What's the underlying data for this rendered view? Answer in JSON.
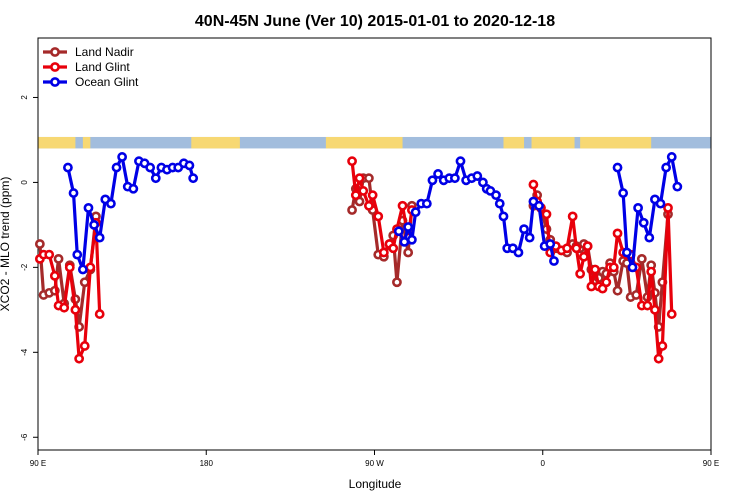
{
  "chart_data": {
    "type": "line",
    "title": "40N-45N June (Ver 10)   2015-01-01 to 2020-12-18",
    "xlabel": "Longitude",
    "ylabel": "XCO2 - MLO trend (ppm)",
    "xlim": [
      90,
      450
    ],
    "ylim": [
      -6.3,
      3.4
    ],
    "x_ticks": [
      {
        "value": 90,
        "label": "90 E"
      },
      {
        "value": 180,
        "label": "180"
      },
      {
        "value": 270,
        "label": "90 W"
      },
      {
        "value": 360,
        "label": "0"
      },
      {
        "value": 450,
        "label": "90 E"
      },
      {
        "value": 540,
        "label": "180"
      }
    ],
    "y_ticks": [
      {
        "value": -6,
        "label": "-6"
      },
      {
        "value": -4,
        "label": "-4"
      },
      {
        "value": -2,
        "label": "-2"
      },
      {
        "value": 0,
        "label": "0"
      },
      {
        "value": 2,
        "label": "2"
      }
    ],
    "legend_position": "top-left",
    "land_ocean_strip": {
      "y_bottom": 0.8,
      "y_top": 1.07,
      "land_color": "#f7d873",
      "ocean_color": "#a2bddd"
    },
    "series": [
      {
        "name": "Land Nadir",
        "color": "#a52a2a",
        "points": [
          [
            91,
            -1.45
          ],
          [
            93,
            -2.65
          ],
          [
            96,
            -2.6
          ],
          [
            99,
            -2.55
          ],
          [
            101,
            -1.8
          ],
          [
            104,
            -2.85
          ],
          [
            107,
            -1.95
          ],
          [
            110,
            -2.75
          ],
          [
            112,
            -3.4
          ],
          [
            115,
            -2.35
          ],
          [
            118,
            -2.05
          ],
          [
            121,
            -0.8
          ],
          [
            258,
            -0.65
          ],
          [
            260,
            -0.15
          ],
          [
            262,
            -0.45
          ],
          [
            264,
            0.1
          ],
          [
            267,
            0.1
          ],
          [
            269,
            -0.65
          ],
          [
            272,
            -1.7
          ],
          [
            275,
            -1.75
          ],
          [
            278,
            -1.45
          ],
          [
            280,
            -1.25
          ],
          [
            282,
            -2.35
          ],
          [
            285,
            -0.9
          ],
          [
            288,
            -1.65
          ],
          [
            290,
            -0.55
          ],
          [
            355,
            -0.55
          ],
          [
            357,
            -0.3
          ],
          [
            359,
            -0.6
          ],
          [
            362,
            -1.1
          ],
          [
            364,
            -1.35
          ],
          [
            367,
            -1.55
          ],
          [
            370,
            -1.6
          ],
          [
            373,
            -1.65
          ],
          [
            376,
            -1.45
          ],
          [
            378,
            -1.5
          ],
          [
            380,
            -1.55
          ],
          [
            382,
            -1.45
          ],
          [
            384,
            -1.5
          ],
          [
            386,
            -2.05
          ],
          [
            388,
            -2.3
          ],
          [
            390,
            -2.25
          ],
          [
            392,
            -2.1
          ],
          [
            394,
            -2.15
          ],
          [
            396,
            -1.9
          ],
          [
            398,
            -2.1
          ],
          [
            400,
            -2.55
          ],
          [
            403,
            -1.85
          ],
          [
            405,
            -1.9
          ],
          [
            407,
            -2.7
          ],
          [
            410,
            -2.65
          ],
          [
            413,
            -1.8
          ],
          [
            416,
            -2.7
          ],
          [
            418,
            -1.95
          ],
          [
            420,
            -2.6
          ],
          [
            422,
            -3.4
          ],
          [
            424,
            -2.35
          ],
          [
            427,
            -0.75
          ]
        ]
      },
      {
        "name": "Land Glint",
        "color": "#e8000b",
        "points": [
          [
            91,
            -1.8
          ],
          [
            93,
            -1.7
          ],
          [
            96,
            -1.7
          ],
          [
            99,
            -2.2
          ],
          [
            101,
            -2.9
          ],
          [
            104,
            -2.95
          ],
          [
            107,
            -2.0
          ],
          [
            110,
            -3.0
          ],
          [
            112,
            -4.15
          ],
          [
            115,
            -3.85
          ],
          [
            118,
            -2.0
          ],
          [
            121,
            -0.95
          ],
          [
            123,
            -3.1
          ],
          [
            258,
            0.5
          ],
          [
            260,
            -0.3
          ],
          [
            262,
            0.1
          ],
          [
            264,
            -0.2
          ],
          [
            267,
            -0.55
          ],
          [
            269,
            -0.3
          ],
          [
            272,
            -0.8
          ],
          [
            275,
            -1.65
          ],
          [
            278,
            -1.45
          ],
          [
            280,
            -1.55
          ],
          [
            282,
            -1.1
          ],
          [
            285,
            -0.55
          ],
          [
            288,
            -1.3
          ],
          [
            290,
            -0.65
          ],
          [
            355,
            -0.05
          ],
          [
            357,
            -0.45
          ],
          [
            359,
            -0.6
          ],
          [
            362,
            -0.75
          ],
          [
            364,
            -1.65
          ],
          [
            367,
            -1.5
          ],
          [
            370,
            -1.6
          ],
          [
            373,
            -1.55
          ],
          [
            376,
            -0.8
          ],
          [
            378,
            -1.55
          ],
          [
            380,
            -2.15
          ],
          [
            382,
            -1.75
          ],
          [
            384,
            -1.5
          ],
          [
            386,
            -2.45
          ],
          [
            388,
            -2.05
          ],
          [
            390,
            -2.45
          ],
          [
            392,
            -2.5
          ],
          [
            394,
            -2.35
          ],
          [
            396,
            -2.0
          ],
          [
            398,
            -2.0
          ],
          [
            400,
            -1.2
          ],
          [
            403,
            -1.65
          ],
          [
            405,
            -1.7
          ],
          [
            407,
            -1.7
          ],
          [
            410,
            -2.0
          ],
          [
            413,
            -2.9
          ],
          [
            416,
            -2.9
          ],
          [
            418,
            -2.1
          ],
          [
            420,
            -3.0
          ],
          [
            422,
            -4.15
          ],
          [
            424,
            -3.85
          ],
          [
            427,
            -0.6
          ],
          [
            429,
            -3.1
          ]
        ]
      },
      {
        "name": "Ocean Glint",
        "color": "#0000e6",
        "points": [
          [
            106,
            0.35
          ],
          [
            109,
            -0.25
          ],
          [
            111,
            -1.7
          ],
          [
            114,
            -2.05
          ],
          [
            117,
            -0.6
          ],
          [
            120,
            -1.0
          ],
          [
            123,
            -1.3
          ],
          [
            126,
            -0.4
          ],
          [
            129,
            -0.5
          ],
          [
            132,
            0.35
          ],
          [
            135,
            0.6
          ],
          [
            138,
            -0.1
          ],
          [
            141,
            -0.15
          ],
          [
            144,
            0.5
          ],
          [
            147,
            0.45
          ],
          [
            150,
            0.35
          ],
          [
            153,
            0.1
          ],
          [
            156,
            0.35
          ],
          [
            159,
            0.3
          ],
          [
            162,
            0.35
          ],
          [
            165,
            0.35
          ],
          [
            168,
            0.45
          ],
          [
            171,
            0.4
          ],
          [
            173,
            0.1
          ],
          [
            283,
            -1.15
          ],
          [
            286,
            -1.4
          ],
          [
            288,
            -1.05
          ],
          [
            290,
            -1.35
          ],
          [
            292,
            -0.7
          ],
          [
            295,
            -0.5
          ],
          [
            298,
            -0.5
          ],
          [
            301,
            0.05
          ],
          [
            304,
            0.2
          ],
          [
            307,
            0.05
          ],
          [
            310,
            0.1
          ],
          [
            313,
            0.1
          ],
          [
            316,
            0.5
          ],
          [
            319,
            0.05
          ],
          [
            322,
            0.1
          ],
          [
            325,
            0.15
          ],
          [
            328,
            0.0
          ],
          [
            330,
            -0.15
          ],
          [
            332,
            -0.2
          ],
          [
            335,
            -0.3
          ],
          [
            337,
            -0.5
          ],
          [
            339,
            -0.8
          ],
          [
            341,
            -1.55
          ],
          [
            344,
            -1.55
          ],
          [
            347,
            -1.65
          ],
          [
            350,
            -1.1
          ],
          [
            353,
            -1.3
          ],
          [
            355,
            -0.45
          ],
          [
            358,
            -0.55
          ],
          [
            361,
            -1.5
          ],
          [
            364,
            -1.45
          ],
          [
            366,
            -1.85
          ],
          [
            400,
            0.35
          ],
          [
            403,
            -0.25
          ],
          [
            405,
            -1.65
          ],
          [
            408,
            -2.0
          ],
          [
            411,
            -0.6
          ],
          [
            414,
            -0.95
          ],
          [
            417,
            -1.3
          ],
          [
            420,
            -0.4
          ],
          [
            423,
            -0.5
          ],
          [
            426,
            0.35
          ],
          [
            429,
            0.6
          ],
          [
            432,
            -0.1
          ]
        ]
      }
    ]
  }
}
